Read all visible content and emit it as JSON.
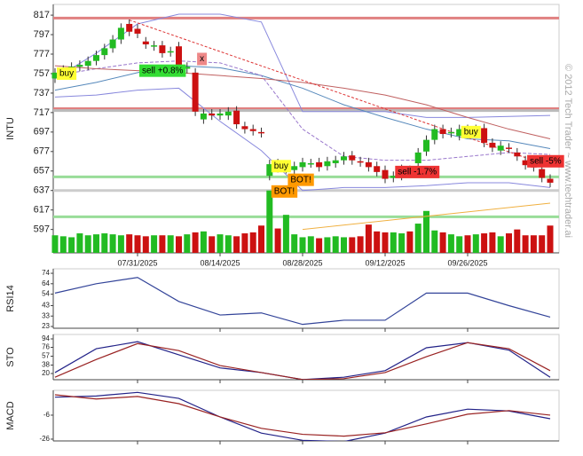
{
  "chart_data": [
    {
      "type": "candlestick",
      "ylabel": "INTU",
      "copyright": "© 2012 Tech Trader ~ www.techtrader.ai",
      "categories": [
        null,
        null,
        null,
        null,
        null,
        null,
        null,
        null,
        null,
        null,
        "07/31/2025",
        null,
        null,
        null,
        null,
        null,
        null,
        null,
        null,
        null,
        "08/14/2025",
        null,
        null,
        null,
        null,
        null,
        null,
        null,
        null,
        null,
        "08/28/2025",
        null,
        null,
        null,
        null,
        null,
        null,
        null,
        null,
        null,
        "09/12/2025",
        null,
        null,
        null,
        null,
        null,
        null,
        null,
        null,
        null,
        "09/26/2025",
        null,
        null,
        null,
        null,
        null,
        null,
        null,
        null,
        null,
        null
      ],
      "open": [
        752,
        758,
        760,
        764,
        765,
        770,
        776,
        783,
        792,
        808,
        803,
        790,
        785,
        786,
        779,
        785,
        762,
        758,
        710,
        716,
        714,
        714,
        719,
        703,
        700,
        697,
        652,
        665,
        659,
        658,
        661,
        665,
        666,
        662,
        665,
        668,
        673,
        667,
        666,
        662,
        658,
        650,
        652,
        658,
        665,
        677,
        689,
        700,
        696,
        693,
        700,
        698,
        701,
        686,
        678,
        681,
        676,
        668,
        662,
        659,
        649
      ],
      "close": [
        758,
        761,
        764,
        766,
        770,
        776,
        783,
        792,
        804,
        800,
        798,
        787,
        786,
        778,
        780,
        762,
        764,
        718,
        716,
        714,
        716,
        718,
        705,
        700,
        698,
        696,
        664,
        660,
        661,
        662,
        666,
        665,
        661,
        667,
        668,
        672,
        668,
        666,
        661,
        656,
        649,
        652,
        659,
        657,
        676,
        689,
        700,
        695,
        697,
        700,
        695,
        700,
        686,
        681,
        683,
        680,
        672,
        663,
        661,
        650,
        645
      ],
      "volume": [
        591,
        590,
        589,
        593,
        591,
        592,
        593,
        592,
        591,
        592,
        591,
        590,
        591,
        591,
        591,
        590,
        592,
        594,
        595,
        590,
        592,
        591,
        590,
        593,
        594,
        601,
        637,
        598,
        612,
        592,
        589,
        590,
        588,
        589,
        590,
        589,
        589,
        590,
        602,
        595,
        594,
        594,
        593,
        595,
        603,
        616,
        596,
        594,
        592,
        590,
        591,
        592,
        593,
        594,
        590,
        593,
        597,
        591,
        591,
        591,
        601
      ],
      "up_color": "#22bb22",
      "down_color": "#cc1111",
      "ylim": [
        573,
        828
      ],
      "yticks": [
        597,
        617,
        637,
        657,
        677,
        697,
        717,
        737,
        757,
        777,
        797,
        817
      ],
      "levels": [
        {
          "value": 814,
          "color": "#e08080"
        },
        {
          "value": 721,
          "color": "#e08080"
        },
        {
          "value": 719,
          "color": "#bbbbbb"
        },
        {
          "value": 651,
          "color": "#99dd99"
        },
        {
          "value": 637,
          "color": "#cccccc"
        },
        {
          "value": 610,
          "color": "#99dd99"
        }
      ],
      "trendlines": [
        {
          "x": [
            9,
            60
          ],
          "values": [
            812,
            662
          ],
          "color": "#dd3333",
          "dashed": true
        },
        {
          "x": [
            30,
            60
          ],
          "values": [
            597,
            624
          ],
          "color": "#f0b040",
          "dashed": false
        }
      ],
      "overlay_x": [
        0,
        5,
        10,
        15,
        20,
        25,
        30,
        35,
        40,
        45,
        50,
        55,
        60
      ],
      "overlays": [
        {
          "color": "#8888dd",
          "dashed": false,
          "values": [
            752,
            778,
            808,
            818,
            818,
            810,
            718,
            718,
            718,
            712,
            712,
            713,
            714
          ]
        },
        {
          "color": "#8888dd",
          "dashed": false,
          "values": [
            733,
            735,
            740,
            742,
            708,
            678,
            637,
            640,
            640,
            642,
            645,
            645,
            640
          ]
        },
        {
          "color": "#5588bb",
          "dashed": false,
          "values": [
            740,
            748,
            758,
            765,
            763,
            755,
            742,
            725,
            712,
            700,
            690,
            688,
            680
          ]
        },
        {
          "color": "#9977cc",
          "dashed": true,
          "values": [
            755,
            762,
            768,
            770,
            768,
            755,
            700,
            672,
            668,
            668,
            672,
            676,
            674
          ]
        },
        {
          "color": "#c06060",
          "dashed": false,
          "values": [
            765,
            762,
            760,
            758,
            755,
            752,
            748,
            742,
            735,
            725,
            712,
            700,
            690
          ]
        }
      ],
      "annotations": [
        {
          "text": "buy",
          "x": 0,
          "y": 757,
          "color": "#ffff33"
        },
        {
          "text": "sell +0.8%",
          "x": 10,
          "y": 760,
          "color": "#33dd33"
        },
        {
          "text": "x",
          "x": 17,
          "y": 772,
          "color": "#ee8888"
        },
        {
          "text": "buy",
          "x": 26,
          "y": 662,
          "color": "#ffff33"
        },
        {
          "text": "BOT!",
          "x": 28,
          "y": 648,
          "color": "#ff9900"
        },
        {
          "text": "BOT!",
          "x": 26,
          "y": 636,
          "color": "#ff9900"
        },
        {
          "text": "sell -1.7%",
          "x": 41,
          "y": 656,
          "color": "#ee3333"
        },
        {
          "text": "buy",
          "x": 49,
          "y": 697,
          "color": "#ffff33"
        },
        {
          "text": "sell -5%",
          "x": 57,
          "y": 667,
          "color": "#ee3333"
        }
      ]
    },
    {
      "type": "line",
      "ylabel": "RSI14",
      "ylim": [
        21.3,
        78.3
      ],
      "yticks": [
        23,
        33,
        43,
        54,
        64,
        74
      ],
      "x": [
        0,
        5,
        10,
        15,
        20,
        25,
        30,
        35,
        40,
        45,
        50,
        55,
        60
      ],
      "series": [
        {
          "color": "#334499",
          "values": [
            55,
            64,
            70,
            47,
            34,
            36,
            25,
            29,
            29,
            55,
            55,
            43,
            32
          ]
        }
      ]
    },
    {
      "type": "line",
      "ylabel": "STO",
      "ylim": [
        6.7,
        103.5
      ],
      "yticks": [
        20,
        38,
        57,
        76,
        94
      ],
      "x": [
        0,
        5,
        10,
        15,
        20,
        25,
        30,
        35,
        40,
        45,
        50,
        55,
        60
      ],
      "series": [
        {
          "color": "#222288",
          "values": [
            22,
            73,
            88,
            60,
            32,
            22,
            7,
            12,
            26,
            75,
            86,
            70,
            12
          ]
        },
        {
          "color": "#992222",
          "values": [
            12,
            50,
            84,
            69,
            37,
            22,
            7,
            9,
            22,
            56,
            86,
            73,
            26
          ]
        }
      ]
    },
    {
      "type": "line",
      "ylabel": "MACD",
      "ylim": [
        -27.5,
        14.7
      ],
      "yticks": [
        -26,
        -6
      ],
      "x": [
        0,
        5,
        10,
        15,
        20,
        25,
        30,
        35,
        40,
        45,
        50,
        55,
        60
      ],
      "series": [
        {
          "color": "#222288",
          "values": [
            9,
            10,
            13,
            8,
            -7.5,
            -21,
            -27,
            -28,
            -21,
            -7.5,
            -1,
            -2.5,
            -9
          ]
        },
        {
          "color": "#992222",
          "values": [
            11,
            7.5,
            9.6,
            3.6,
            -7.5,
            -17,
            -22,
            -23.5,
            -20.7,
            -13.3,
            -5.2,
            -2.2,
            -6
          ]
        }
      ]
    }
  ]
}
